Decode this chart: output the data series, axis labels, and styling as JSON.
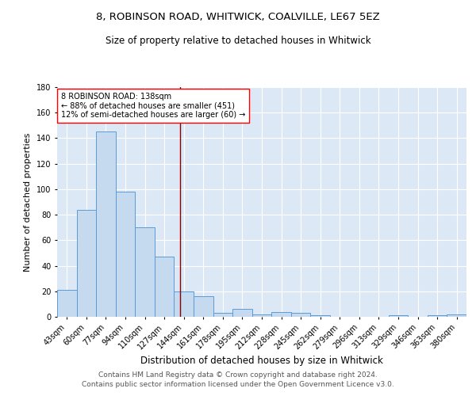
{
  "title1": "8, ROBINSON ROAD, WHITWICK, COALVILLE, LE67 5EZ",
  "title2": "Size of property relative to detached houses in Whitwick",
  "xlabel": "Distribution of detached houses by size in Whitwick",
  "ylabel": "Number of detached properties",
  "categories": [
    "43sqm",
    "60sqm",
    "77sqm",
    "94sqm",
    "110sqm",
    "127sqm",
    "144sqm",
    "161sqm",
    "178sqm",
    "195sqm",
    "212sqm",
    "228sqm",
    "245sqm",
    "262sqm",
    "279sqm",
    "296sqm",
    "313sqm",
    "329sqm",
    "346sqm",
    "363sqm",
    "380sqm"
  ],
  "values": [
    21,
    84,
    145,
    98,
    70,
    47,
    20,
    16,
    3,
    6,
    2,
    4,
    3,
    1,
    0,
    0,
    0,
    1,
    0,
    1,
    2
  ],
  "bar_color": "#c5d9ef",
  "bar_edge_color": "#5b9bd5",
  "vline_x_index": 5.82,
  "vline_color": "#8b0000",
  "annotation_text": "8 ROBINSON ROAD: 138sqm\n← 88% of detached houses are smaller (451)\n12% of semi-detached houses are larger (60) →",
  "annotation_box_color": "white",
  "annotation_box_edge_color": "red",
  "ylim": [
    0,
    180
  ],
  "yticks": [
    0,
    20,
    40,
    60,
    80,
    100,
    120,
    140,
    160,
    180
  ],
  "background_color": "#dce8f5",
  "grid_color": "white",
  "footer": "Contains HM Land Registry data © Crown copyright and database right 2024.\nContains public sector information licensed under the Open Government Licence v3.0.",
  "title1_fontsize": 9.5,
  "title2_fontsize": 8.5,
  "xlabel_fontsize": 8.5,
  "ylabel_fontsize": 8,
  "tick_fontsize": 7,
  "annotation_fontsize": 7,
  "footer_fontsize": 6.5
}
